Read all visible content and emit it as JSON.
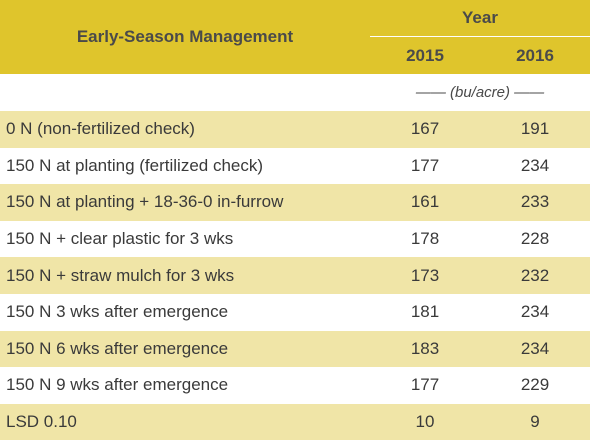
{
  "header": {
    "management_label": "Early-Season Management",
    "year_label": "Year",
    "columns": [
      "2015",
      "2016"
    ]
  },
  "units": "—— (bu/acre) ——",
  "rows": [
    {
      "label": "0 N (non-fertilized check)",
      "y2015": "167",
      "y2016": "191"
    },
    {
      "label": "150 N at planting (fertilized check)",
      "y2015": "177",
      "y2016": "234"
    },
    {
      "label": "150 N at planting + 18-36-0 in-furrow",
      "y2015": "161",
      "y2016": "233"
    },
    {
      "label": "150 N + clear plastic for 3 wks",
      "y2015": "178",
      "y2016": "228"
    },
    {
      "label": "150 N + straw mulch for 3 wks",
      "y2015": "173",
      "y2016": "232"
    },
    {
      "label": "150 N 3 wks after emergence",
      "y2015": "181",
      "y2016": "234"
    },
    {
      "label": "150 N 6 wks after emergence",
      "y2015": "183",
      "y2016": "234"
    },
    {
      "label": "150 N 9 wks after emergence",
      "y2015": "177",
      "y2016": "229"
    },
    {
      "label": "LSD 0.10",
      "y2015": "10",
      "y2016": "9"
    }
  ],
  "colors": {
    "header_bg": "#dfc52c",
    "stripe_bg": "#f0e5a7",
    "text": "#3a3a3a"
  }
}
